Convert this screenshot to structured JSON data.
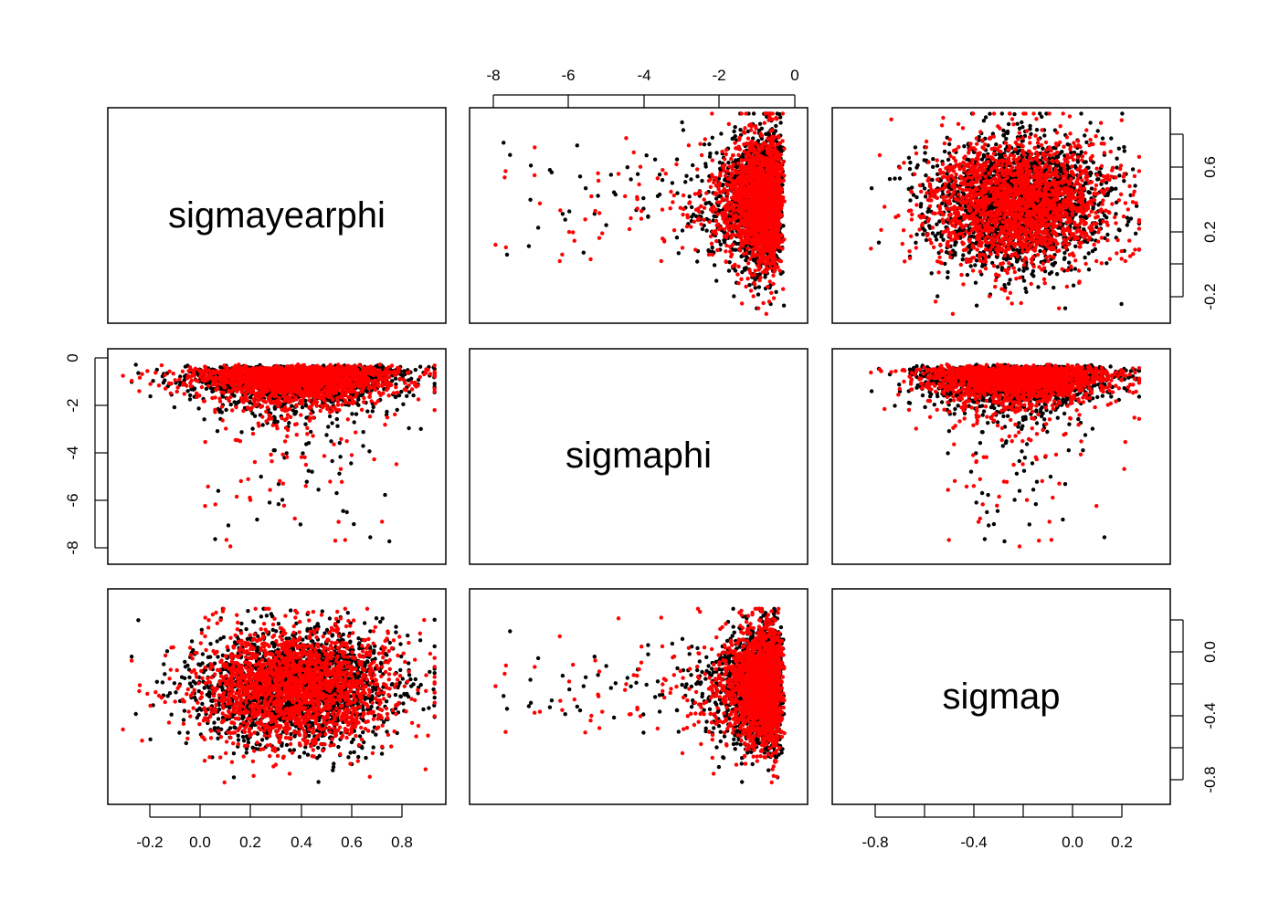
{
  "chart_data": {
    "type": "scatter",
    "kind": "pairs-matrix",
    "variables": [
      "sigmayearphi",
      "sigmaphi",
      "sigmap"
    ],
    "ranges": {
      "sigmayearphi": [
        -0.33,
        0.93
      ],
      "sigmaphi": [
        -8.3,
        0.0
      ],
      "sigmap": [
        -0.92,
        0.27
      ]
    },
    "ticks": {
      "sigmayearphi": {
        "top_right": [
          "-0.2",
          "0.2",
          "0.6"
        ],
        "bottom": [
          "-0.2",
          "0.0",
          "0.2",
          "0.4",
          "0.6",
          "0.8"
        ]
      },
      "sigmaphi": {
        "top": [
          "-8",
          "-6",
          "-4",
          "-2",
          "0"
        ],
        "left": [
          "0",
          "-2",
          "-4",
          "-6",
          "-8"
        ]
      },
      "sigmap": {
        "bottom": [
          "-0.8",
          "-0.4",
          "0.0",
          "0.2"
        ],
        "right": [
          "0.0",
          "-0.4",
          "-0.8"
        ]
      }
    },
    "series": [
      {
        "color": "#000000",
        "n_points": 2000
      },
      {
        "color": "#ff0000",
        "n_points": 2000
      }
    ],
    "distribution": {
      "sigmayearphi": {
        "mean": 0.38,
        "sd": 0.19
      },
      "sigmaphi": {
        "shape": "negative-skewed",
        "mode": -0.8,
        "max": 0.0,
        "min": -8.3
      },
      "sigmap": {
        "mean": -0.22,
        "sd": 0.18
      }
    },
    "grid": false,
    "legend": "none",
    "point_size": 2.2
  }
}
